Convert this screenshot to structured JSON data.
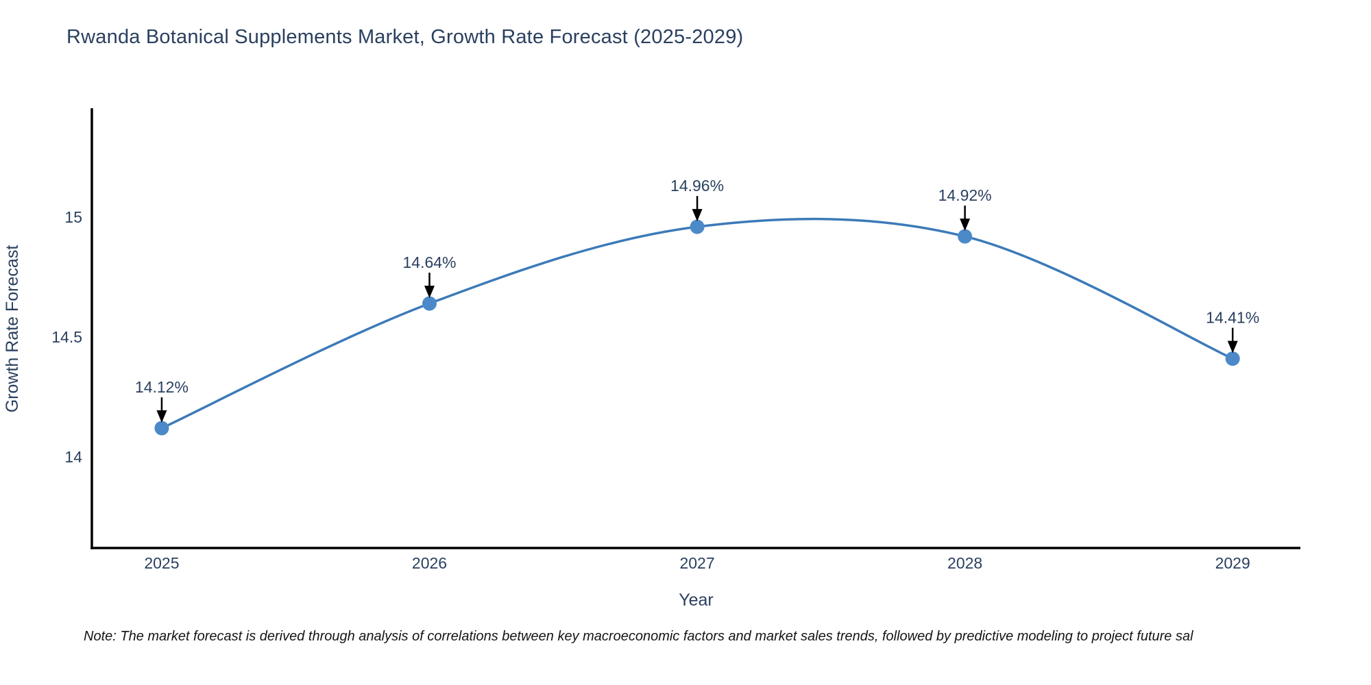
{
  "title": "Rwanda Botanical Supplements Market, Growth Rate Forecast (2025-2029)",
  "note": "Note: The market forecast is derived through analysis of correlations between key macroeconomic factors and market sales trends, followed by predictive modeling to project future sal",
  "chart_data": {
    "type": "line",
    "title": "Rwanda Botanical Supplements Market, Growth Rate Forecast (2025-2029)",
    "xlabel": "Year",
    "ylabel": "Growth Rate Forecast",
    "x": [
      2025,
      2026,
      2027,
      2028,
      2029
    ],
    "y": [
      14.12,
      14.64,
      14.96,
      14.92,
      14.41
    ],
    "point_labels": [
      "14.12%",
      "14.64%",
      "14.96%",
      "14.92%",
      "14.41%"
    ],
    "xticks": [
      {
        "value": 2025,
        "label": "2025"
      },
      {
        "value": 2026,
        "label": "2026"
      },
      {
        "value": 2027,
        "label": "2027"
      },
      {
        "value": 2028,
        "label": "2028"
      },
      {
        "value": 2029,
        "label": "2029"
      }
    ],
    "yticks": [
      {
        "value": 14,
        "label": "14"
      },
      {
        "value": 14.5,
        "label": "14.5"
      },
      {
        "value": 15,
        "label": "15"
      }
    ],
    "xlim": [
      2024.739,
      2029.253
    ],
    "ylim": [
      13.62,
      15.449
    ],
    "grid": false,
    "legend": "none",
    "line_shape": "spline",
    "colors": {
      "line": "#3c7ab8",
      "marker": "#4c89c8",
      "annotation_arrow": "#000000",
      "axis": "#000000",
      "text": "#2a3f5f",
      "note_text": "#141414"
    }
  }
}
